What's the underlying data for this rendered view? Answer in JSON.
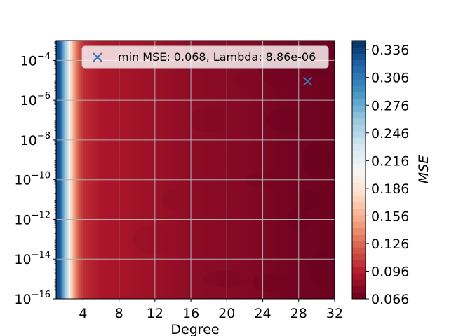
{
  "chart_data": {
    "type": "heatmap",
    "subtype": "filled-contour",
    "xlabel": "Degree",
    "ylabel": "",
    "x_range": [
      1,
      32
    ],
    "x_ticks": [
      4,
      8,
      12,
      16,
      20,
      24,
      28,
      32
    ],
    "y_scale": "log",
    "y_range_exponent": [
      -16,
      -3
    ],
    "y_ticks_exponent": [
      -16,
      -14,
      -12,
      -10,
      -8,
      -6,
      -4
    ],
    "grid": true,
    "colormap": "RdBu",
    "colorbar": {
      "label": "MSE",
      "min": 0.066,
      "max": 0.346,
      "ticks": [
        "0.066",
        "0.096",
        "0.126",
        "0.156",
        "0.186",
        "0.216",
        "0.246",
        "0.276",
        "0.306",
        "0.336"
      ]
    },
    "mse_by_degree": [
      {
        "degree": 1,
        "mse": 0.336
      },
      {
        "degree": 1.5,
        "mse": 0.32
      },
      {
        "degree": 2,
        "mse": 0.26
      },
      {
        "degree": 2.5,
        "mse": 0.2
      },
      {
        "degree": 3,
        "mse": 0.15
      },
      {
        "degree": 3.5,
        "mse": 0.12
      },
      {
        "degree": 4,
        "mse": 0.102
      },
      {
        "degree": 6,
        "mse": 0.092
      },
      {
        "degree": 10,
        "mse": 0.088
      },
      {
        "degree": 16,
        "mse": 0.08
      },
      {
        "degree": 22,
        "mse": 0.077
      },
      {
        "degree": 26,
        "mse": 0.072
      },
      {
        "degree": 32,
        "mse": 0.068
      }
    ],
    "minimum": {
      "degree": 29,
      "lambda": 8.86e-06,
      "mse": 0.068
    },
    "legend": {
      "label": "min MSE: 0.068, Lambda: 8.86e-06",
      "placement": "top"
    },
    "colors": {
      "min_marker": "#3773b5",
      "low": "#67001f",
      "mid": "#f7f7f7",
      "high": "#053061"
    }
  }
}
